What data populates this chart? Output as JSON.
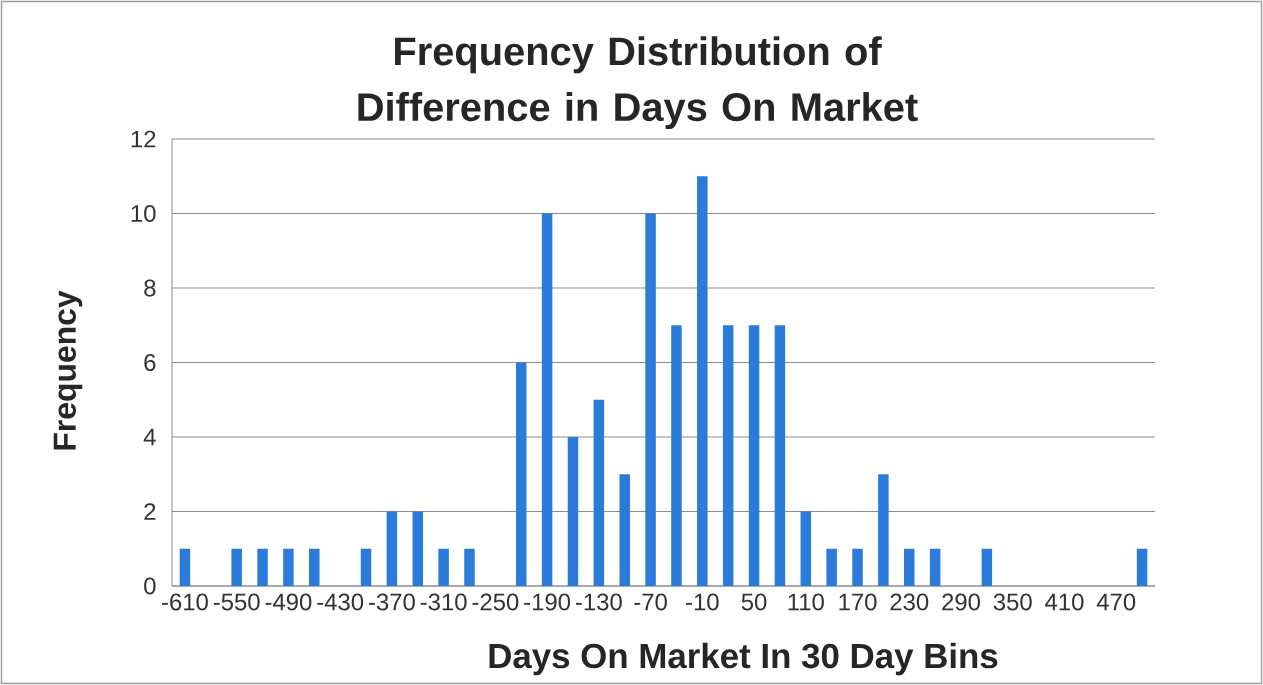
{
  "chart_data": {
    "type": "bar",
    "title": "Frequency Distribution of Difference in Days On Market",
    "xlabel": "Days On Market In 30 Day Bins",
    "ylabel": "Frequency",
    "categories": [
      "-610",
      null,
      "-550",
      null,
      "-490",
      null,
      "-430",
      null,
      "-370",
      null,
      "-310",
      null,
      "-250",
      null,
      "-190",
      null,
      "-130",
      null,
      "-70",
      null,
      "-10",
      null,
      "50",
      null,
      "110",
      null,
      "170",
      null,
      "230",
      null,
      "290",
      null,
      "350",
      null,
      "410",
      null,
      "470",
      null
    ],
    "values": [
      1,
      0,
      1,
      1,
      1,
      1,
      0,
      1,
      2,
      2,
      1,
      1,
      0,
      6,
      10,
      4,
      5,
      3,
      10,
      7,
      11,
      7,
      7,
      7,
      2,
      1,
      1,
      3,
      1,
      1,
      0,
      1,
      0,
      0,
      0,
      0,
      0,
      1
    ],
    "color": "#2b7bdb",
    "ylim": [
      0,
      12
    ],
    "yticks": [
      0,
      2,
      4,
      6,
      8,
      10,
      12
    ],
    "grid": "y"
  }
}
